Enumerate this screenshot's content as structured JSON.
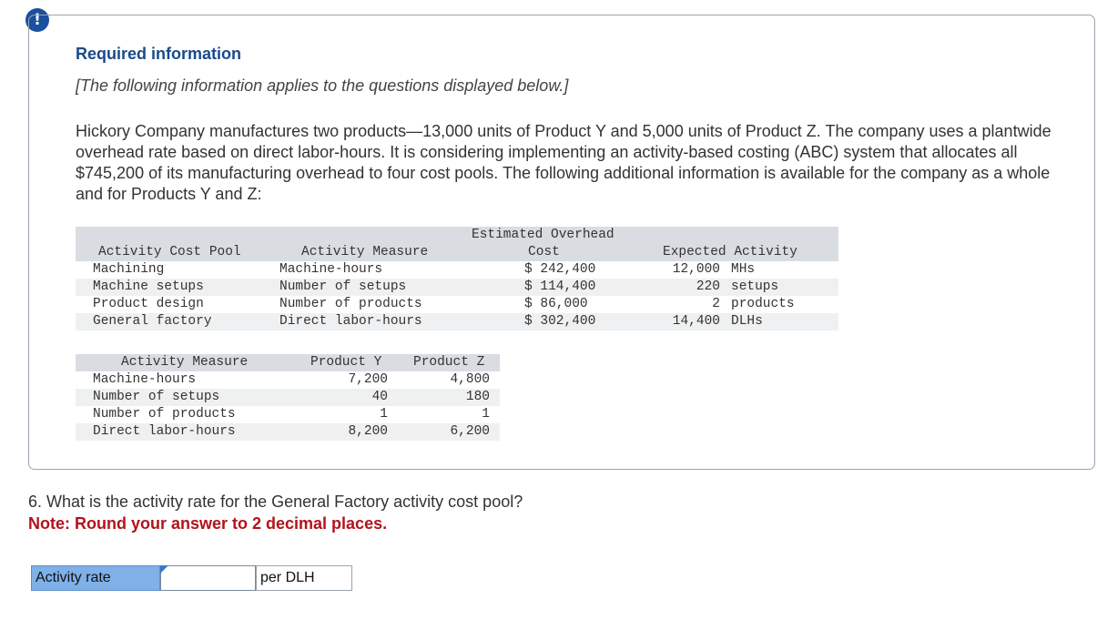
{
  "alert": {
    "icon": "exclamation-icon",
    "symbol": "!"
  },
  "required": {
    "title": "Required information",
    "subtitle": "[The following information applies to the questions displayed below.]",
    "intro": "Hickory Company manufactures two products—13,000 units of Product Y and 5,000 units of Product Z. The company uses a plantwide overhead rate based on direct labor-hours. It is considering implementing an activity-based costing (ABC) system that allocates all $745,200 of its manufacturing overhead to four cost pools. The following additional information is available for the company as a whole and for Products Y and Z:"
  },
  "table1": {
    "headers": {
      "pool": "Activity Cost Pool",
      "measure": "Activity Measure",
      "cost_line1": "Estimated Overhead",
      "cost_line2": "Cost",
      "expected": "Expected Activity"
    },
    "rows": [
      {
        "pool": "Machining",
        "measure": "Machine-hours",
        "cost": "$ 242,400",
        "qty": "12,000",
        "unit": "MHs"
      },
      {
        "pool": "Machine setups",
        "measure": "Number of setups",
        "cost": "$ 114,400",
        "qty": "220",
        "unit": "setups"
      },
      {
        "pool": "Product design",
        "measure": "Number of products",
        "cost": "$ 86,000",
        "qty": "2",
        "unit": "products"
      },
      {
        "pool": "General factory",
        "measure": "Direct labor-hours",
        "cost": "$ 302,400",
        "qty": "14,400",
        "unit": "DLHs"
      }
    ]
  },
  "table2": {
    "headers": {
      "measure": "Activity Measure",
      "y": "Product Y",
      "z": "Product Z"
    },
    "rows": [
      {
        "measure": "Machine-hours",
        "y": "7,200",
        "z": "4,800"
      },
      {
        "measure": "Number of setups",
        "y": "40",
        "z": "180"
      },
      {
        "measure": "Number of products",
        "y": "1",
        "z": "1"
      },
      {
        "measure": "Direct labor-hours",
        "y": "8,200",
        "z": "6,200"
      }
    ]
  },
  "question": {
    "text": "6. What is the activity rate for the General Factory activity cost pool?",
    "note": "Note: Round your answer to 2 decimal places."
  },
  "answer": {
    "label": "Activity rate",
    "value": "",
    "unit": "per DLH"
  }
}
